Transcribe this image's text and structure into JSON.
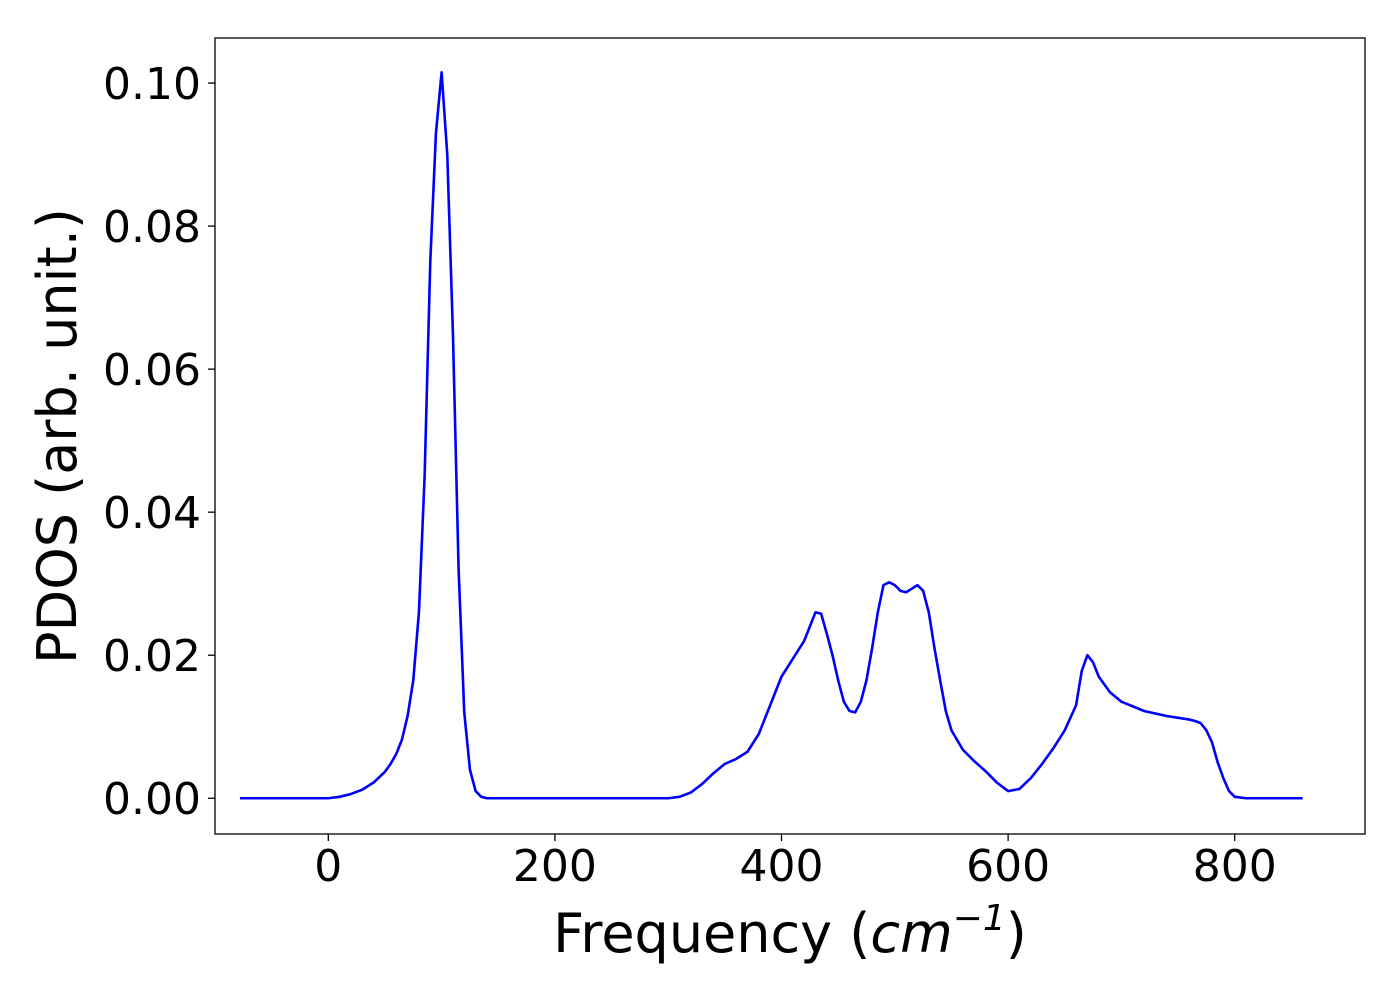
{
  "chart_data": {
    "type": "line",
    "title": "",
    "xlabel": "Frequency (cm⁻¹)",
    "xlabel_parts": {
      "prefix": "Frequency (",
      "unit": "cm",
      "exponent": "−1",
      "suffix": ")"
    },
    "ylabel": "PDOS (arb. unit.)",
    "xlim": [
      -100,
      915
    ],
    "ylim": [
      -0.005,
      0.1063
    ],
    "xticks": [
      0,
      200,
      400,
      600,
      800
    ],
    "xtick_labels": [
      "0",
      "200",
      "400",
      "600",
      "800"
    ],
    "yticks": [
      0.0,
      0.02,
      0.04,
      0.06,
      0.08,
      0.1
    ],
    "ytick_labels": [
      "0.00",
      "0.02",
      "0.04",
      "0.06",
      "0.08",
      "0.10"
    ],
    "grid": false,
    "series": [
      {
        "color": "#0000ff",
        "x": [
          -78,
          -50,
          -20,
          0,
          10,
          20,
          30,
          40,
          50,
          55,
          60,
          65,
          70,
          75,
          80,
          85,
          90,
          95,
          100,
          105,
          110,
          115,
          120,
          125,
          130,
          135,
          140,
          145,
          150,
          200,
          250,
          300,
          310,
          320,
          330,
          340,
          350,
          360,
          370,
          380,
          390,
          400,
          410,
          420,
          430,
          435,
          440,
          445,
          450,
          455,
          460,
          465,
          470,
          475,
          480,
          485,
          490,
          495,
          500,
          505,
          510,
          515,
          520,
          525,
          530,
          535,
          540,
          545,
          550,
          560,
          570,
          580,
          590,
          600,
          610,
          620,
          630,
          640,
          650,
          660,
          665,
          670,
          675,
          680,
          690,
          700,
          720,
          740,
          760,
          765,
          770,
          775,
          780,
          785,
          790,
          795,
          800,
          810,
          830,
          860
        ],
        "y": [
          0.0,
          0.0,
          0.0,
          0.0,
          0.0002,
          0.0006,
          0.0012,
          0.0022,
          0.0037,
          0.0048,
          0.0062,
          0.0082,
          0.0115,
          0.0165,
          0.026,
          0.045,
          0.075,
          0.093,
          0.1015,
          0.09,
          0.065,
          0.032,
          0.012,
          0.004,
          0.001,
          0.0002,
          0.0,
          0.0,
          0.0,
          0.0,
          0.0,
          0.0,
          0.0002,
          0.0008,
          0.002,
          0.0035,
          0.0048,
          0.0055,
          0.0065,
          0.009,
          0.013,
          0.017,
          0.0195,
          0.022,
          0.026,
          0.0258,
          0.023,
          0.02,
          0.0165,
          0.0135,
          0.0122,
          0.012,
          0.0135,
          0.0165,
          0.021,
          0.026,
          0.0298,
          0.0302,
          0.0298,
          0.029,
          0.0288,
          0.0293,
          0.0298,
          0.029,
          0.026,
          0.021,
          0.0165,
          0.0122,
          0.0095,
          0.0068,
          0.0052,
          0.0038,
          0.0022,
          0.001,
          0.0013,
          0.0028,
          0.0048,
          0.007,
          0.0095,
          0.013,
          0.0178,
          0.02,
          0.019,
          0.017,
          0.0148,
          0.0135,
          0.0122,
          0.0115,
          0.011,
          0.0108,
          0.0105,
          0.0095,
          0.0078,
          0.005,
          0.0028,
          0.001,
          0.0002,
          0.0,
          0.0,
          0.0
        ]
      }
    ]
  }
}
